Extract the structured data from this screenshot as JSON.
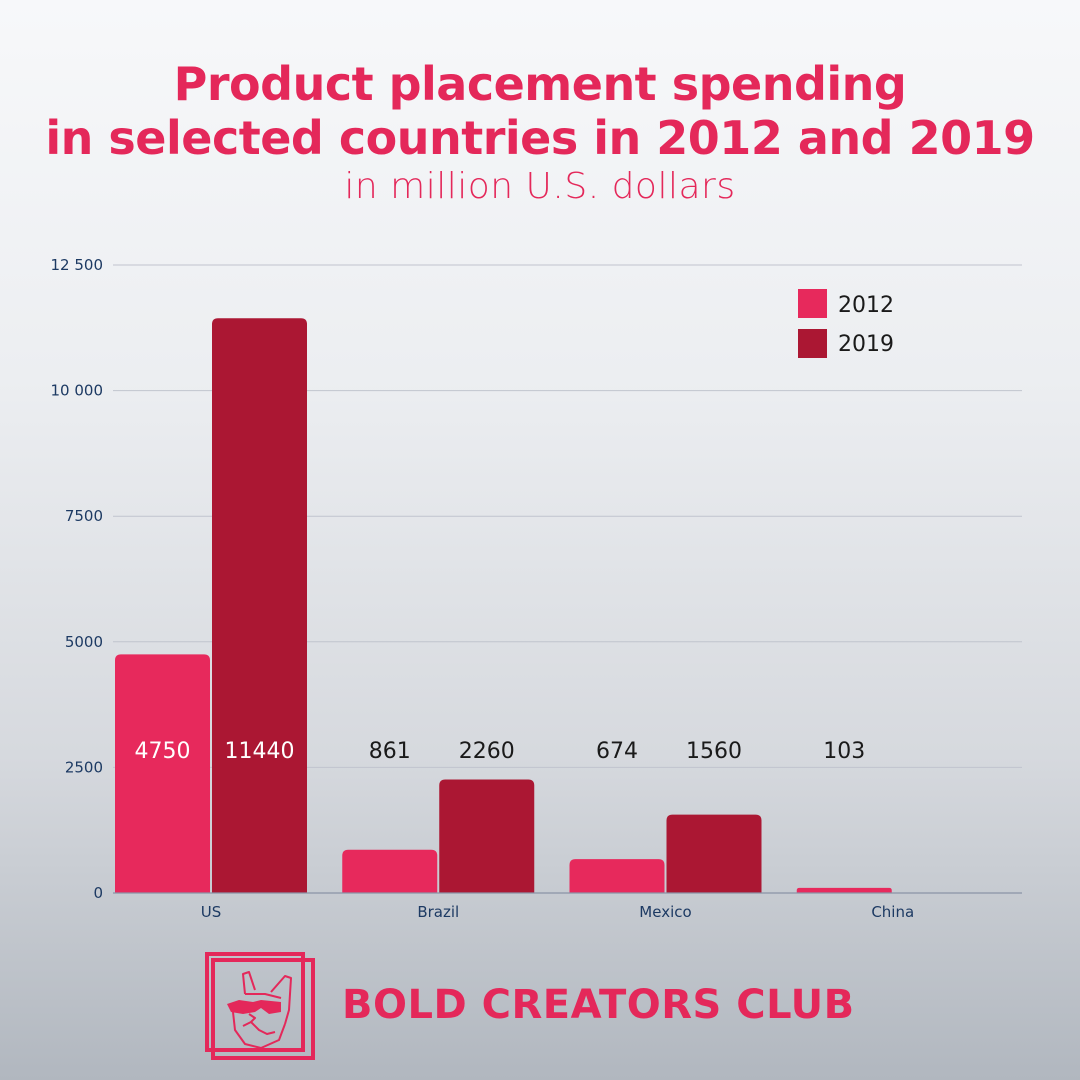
{
  "header": {
    "title_line1": "Product placement spending",
    "title_line2": "in selected countries in 2012 and 2019",
    "subtitle": "in million U.S. dollars"
  },
  "colors": {
    "title": "#e4285a",
    "series_2012": "#e7295c",
    "series_2019": "#ab1733",
    "axis_text": "#1d3a63",
    "grid": "#c0c4ce"
  },
  "chart_data": {
    "type": "bar",
    "title": "Product placement spending in selected countries in 2012 and 2019",
    "subtitle": "in million U.S. dollars",
    "xlabel": "",
    "ylabel": "",
    "categories": [
      "US",
      "Brazil",
      "Mexico",
      "China"
    ],
    "series": [
      {
        "name": "2012",
        "values": [
          4750,
          861,
          674,
          103
        ]
      },
      {
        "name": "2019",
        "values": [
          11440,
          2260,
          1560,
          null
        ]
      }
    ],
    "data_labels": [
      [
        "4750",
        "861",
        "674",
        "103"
      ],
      [
        "11440",
        "2260",
        "1560",
        ""
      ]
    ],
    "ylim": [
      0,
      12500
    ],
    "yticks": [
      0,
      2500,
      5000,
      7500,
      10000,
      12500
    ],
    "ytick_labels": [
      "0",
      "2500",
      "5000",
      "7500",
      "10 000",
      "12 500"
    ],
    "grid": true,
    "legend": {
      "position": "top-right",
      "entries": [
        "2012",
        "2019"
      ]
    }
  },
  "brand": {
    "name": "BOLD CREATORS CLUB",
    "logo_icon": "bulldog-sunglasses-icon"
  }
}
